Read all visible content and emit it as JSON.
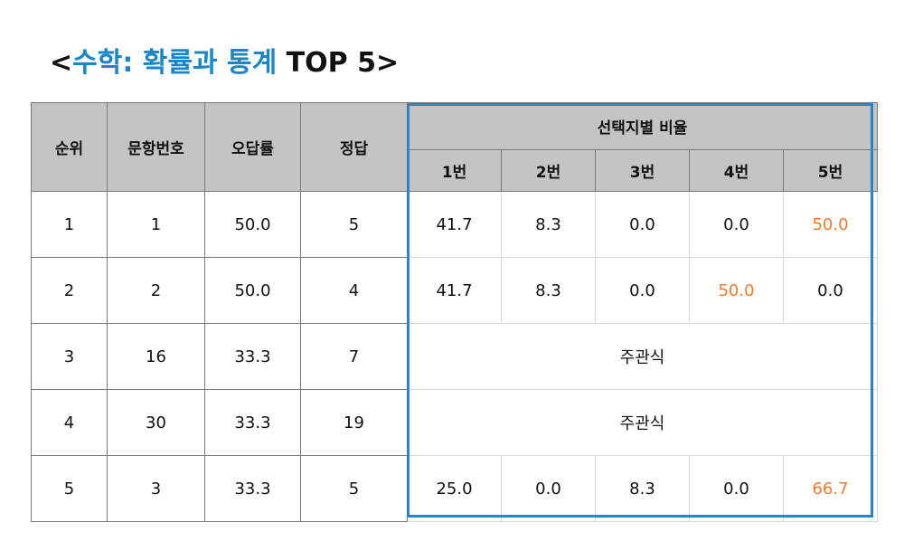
{
  "title": {
    "lt": "<",
    "accent": "수학: 확률과 통계",
    "rest": " TOP 5>"
  },
  "headers": {
    "rank": "순위",
    "question": "문항번호",
    "error_rate": "오답률",
    "answer": "정답",
    "choice_ratio": "선택지별 비율",
    "choices": [
      "1번",
      "2번",
      "3번",
      "4번",
      "5번"
    ]
  },
  "highlight_color": "#f07b2e",
  "frame_color": "#2a86c8",
  "rows": [
    {
      "rank": "1",
      "question": "1",
      "error_rate": "50.0",
      "answer": "5",
      "choices": [
        "41.7",
        "8.3",
        "0.0",
        "0.0",
        "50.0"
      ],
      "highlight": 4
    },
    {
      "rank": "2",
      "question": "2",
      "error_rate": "50.0",
      "answer": "4",
      "choices": [
        "41.7",
        "8.3",
        "0.0",
        "50.0",
        "0.0"
      ],
      "highlight": 3
    },
    {
      "rank": "3",
      "question": "16",
      "error_rate": "33.3",
      "answer": "7",
      "subjective": "주관식"
    },
    {
      "rank": "4",
      "question": "30",
      "error_rate": "33.3",
      "answer": "19",
      "subjective": "주관식"
    },
    {
      "rank": "5",
      "question": "3",
      "error_rate": "33.3",
      "answer": "5",
      "choices": [
        "25.0",
        "0.0",
        "8.3",
        "0.0",
        "66.7"
      ],
      "highlight": 4
    }
  ]
}
